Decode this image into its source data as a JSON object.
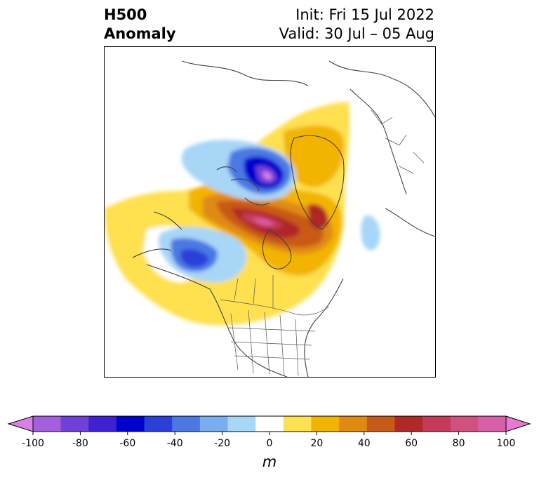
{
  "title": {
    "left_line1": "H500",
    "left_line2": "Anomaly",
    "right_line1": "Init: Fri 15 Jul 2022",
    "right_line2": "Valid: 30 Jul – 05 Aug"
  },
  "colorbar": {
    "units": "m",
    "ticks": [
      "-100",
      "-80",
      "-60",
      "-40",
      "-20",
      "0",
      "20",
      "40",
      "60",
      "80",
      "100"
    ],
    "extend": "both",
    "colors": [
      "#d980e6",
      "#a35fe0",
      "#7040d8",
      "#4020d0",
      "#0000cc",
      "#2a40d8",
      "#4c78e4",
      "#78aeef",
      "#a8d6f7",
      "#ffffff",
      "#ffe050",
      "#f2b400",
      "#e08a12",
      "#c85a18",
      "#b02828",
      "#c43a58",
      "#d05080",
      "#d860a8",
      "#e878d0"
    ]
  },
  "map": {
    "projection": "polar stereographic, North America",
    "features": [
      "coastlines",
      "country borders",
      "US state borders",
      "Canadian provinces"
    ]
  }
}
